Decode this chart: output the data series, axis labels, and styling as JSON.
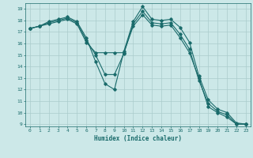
{
  "xlabel": "Humidex (Indice chaleur)",
  "background_color": "#cce8e8",
  "grid_color": "#aacccc",
  "line_color": "#1a6b6b",
  "xlim": [
    -0.5,
    23.5
  ],
  "ylim": [
    8.8,
    19.5
  ],
  "yticks": [
    9,
    10,
    11,
    12,
    13,
    14,
    15,
    16,
    17,
    18,
    19
  ],
  "xticks": [
    0,
    1,
    2,
    3,
    4,
    5,
    6,
    7,
    8,
    9,
    10,
    11,
    12,
    13,
    14,
    15,
    16,
    17,
    18,
    19,
    20,
    21,
    22,
    23
  ],
  "series": [
    {
      "x": [
        0,
        1,
        2,
        3,
        4,
        5,
        6,
        7,
        8,
        9,
        10,
        11,
        12,
        13,
        14,
        15,
        16,
        17,
        18,
        19,
        20,
        21,
        22,
        23
      ],
      "y": [
        17.3,
        17.5,
        17.9,
        18.1,
        18.3,
        17.9,
        16.5,
        14.4,
        12.5,
        12.0,
        15.3,
        17.9,
        19.2,
        18.1,
        18.0,
        18.1,
        17.4,
        16.1,
        13.2,
        11.1,
        10.3,
        10.0,
        9.1,
        9.0
      ]
    },
    {
      "x": [
        0,
        1,
        2,
        3,
        4,
        5,
        6,
        7,
        8,
        9,
        10,
        11,
        12,
        13,
        14,
        15,
        16,
        17,
        18,
        19,
        20,
        21,
        22,
        23
      ],
      "y": [
        17.3,
        17.5,
        17.8,
        18.0,
        18.2,
        17.8,
        16.3,
        15.0,
        13.3,
        13.3,
        15.1,
        17.7,
        18.8,
        17.8,
        17.7,
        17.8,
        16.8,
        15.5,
        12.8,
        10.8,
        10.1,
        9.8,
        9.0,
        9.0
      ]
    },
    {
      "x": [
        0,
        1,
        2,
        3,
        4,
        5,
        6,
        7,
        8,
        9,
        10,
        11,
        12,
        13,
        14,
        15,
        16,
        17,
        18,
        19,
        20,
        21,
        22,
        23
      ],
      "y": [
        17.3,
        17.5,
        17.7,
        17.9,
        18.1,
        17.7,
        16.1,
        15.2,
        15.2,
        15.2,
        15.2,
        17.5,
        18.5,
        17.6,
        17.5,
        17.6,
        16.5,
        15.2,
        13.0,
        10.5,
        10.0,
        9.6,
        9.0,
        9.0
      ]
    }
  ]
}
